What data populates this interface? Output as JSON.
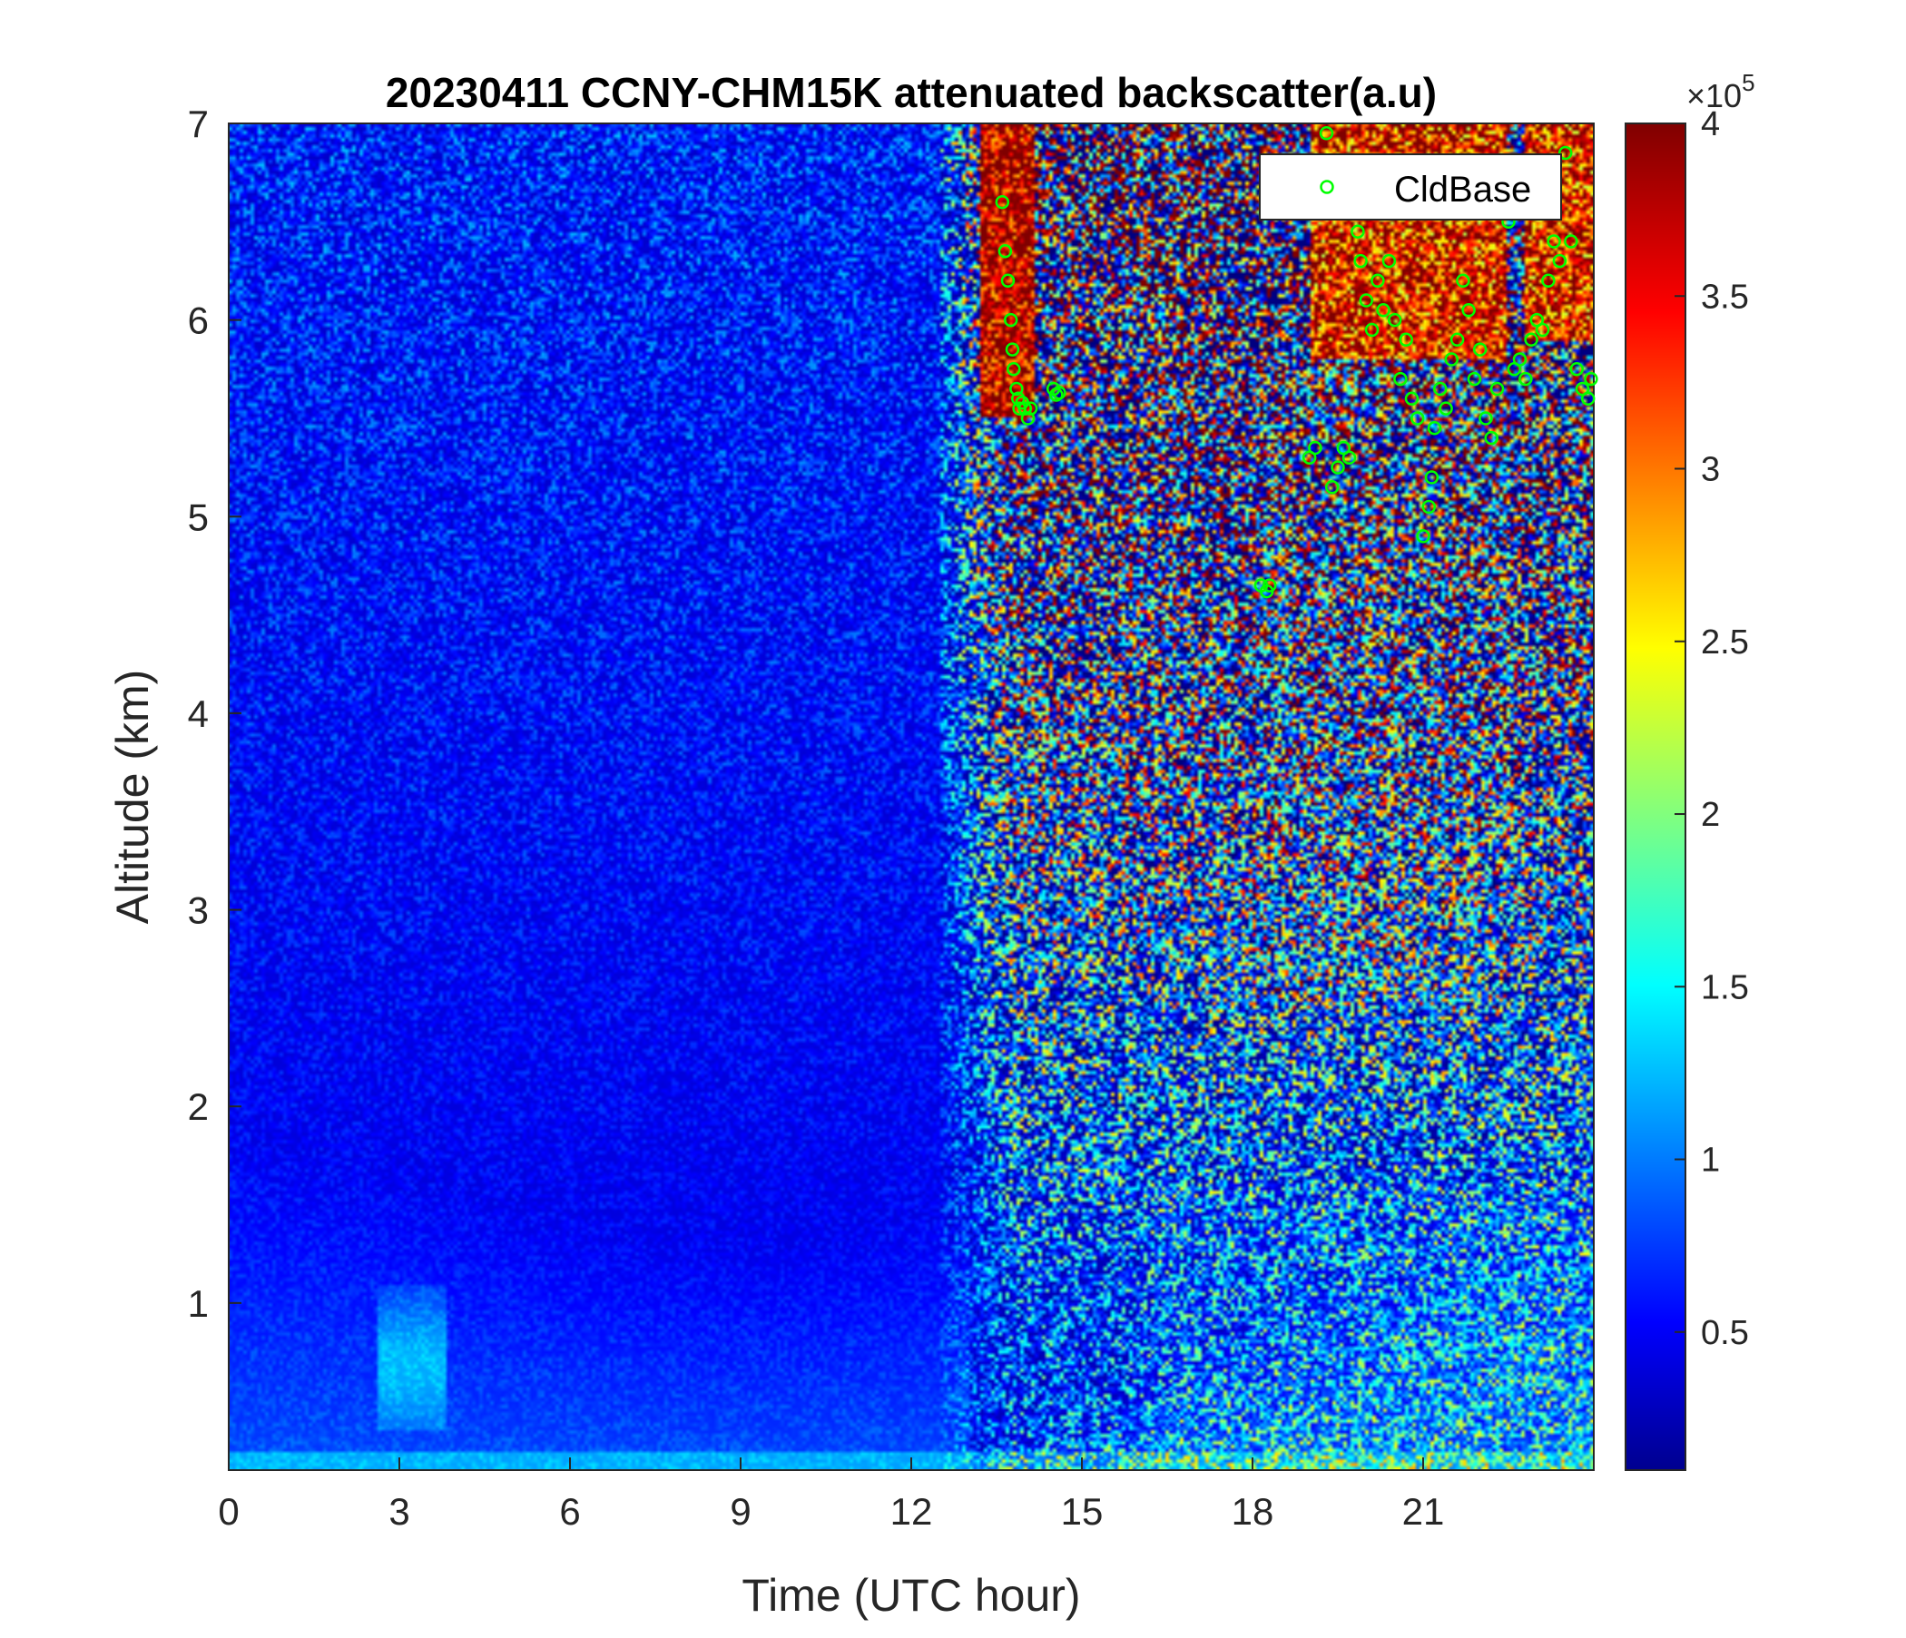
{
  "chart_data": {
    "type": "heatmap",
    "title": "20230411 CCNY-CHM15K attenuated backscatter(a.u)",
    "xlabel": "Time (UTC hour)",
    "ylabel": "Altitude (km)",
    "xlim": [
      0,
      24
    ],
    "ylim": [
      0.15,
      7
    ],
    "x_ticks": [
      0,
      3,
      6,
      9,
      12,
      15,
      18,
      21
    ],
    "x_tick_labels": [
      "0",
      "3",
      "6",
      "9",
      "12",
      "15",
      "18",
      "21"
    ],
    "y_ticks": [
      1,
      2,
      3,
      4,
      5,
      6,
      7
    ],
    "y_tick_labels": [
      "1",
      "2",
      "3",
      "4",
      "5",
      "6",
      "7"
    ],
    "colorbar": {
      "colormap": "jet",
      "range": [
        0.1,
        4
      ],
      "ticks": [
        0.5,
        1,
        1.5,
        2,
        2.5,
        3,
        3.5,
        4
      ],
      "tick_labels": [
        "0.5",
        "1",
        "1.5",
        "2",
        "2.5",
        "3",
        "3.5",
        "4"
      ],
      "multiplier_base": "×10",
      "multiplier_exp": "5"
    },
    "legend": {
      "position": "top-right",
      "entries": [
        {
          "name": "CldBase",
          "marker": "circle",
          "color": "#00ff00"
        }
      ]
    },
    "series": [
      {
        "name": "CldBase",
        "x": [
          13.6,
          13.65,
          13.7,
          13.75,
          13.78,
          13.8,
          13.85,
          13.88,
          13.9,
          13.95,
          14.0,
          14.05,
          14.1,
          14.5,
          14.55,
          14.6,
          18.15,
          18.25,
          18.3,
          19.0,
          19.1,
          19.3,
          19.4,
          19.5,
          19.6,
          19.7,
          19.85,
          19.9,
          20.0,
          20.1,
          20.2,
          20.3,
          20.4,
          20.5,
          20.6,
          20.7,
          20.8,
          20.9,
          21.0,
          21.1,
          21.15,
          21.2,
          21.3,
          21.4,
          21.5,
          21.6,
          21.7,
          21.8,
          21.9,
          22.0,
          22.1,
          22.2,
          22.3,
          22.5,
          22.6,
          22.7,
          22.8,
          22.9,
          23.0,
          23.1,
          23.2,
          23.3,
          23.4,
          23.5,
          23.6,
          23.7,
          23.8,
          23.9,
          23.95
        ],
        "y": [
          6.6,
          6.35,
          6.2,
          6.0,
          5.85,
          5.75,
          5.65,
          5.6,
          5.55,
          5.58,
          5.55,
          5.5,
          5.55,
          5.65,
          5.62,
          5.63,
          4.65,
          4.62,
          4.65,
          5.3,
          5.35,
          6.95,
          5.15,
          5.25,
          5.35,
          5.3,
          6.45,
          6.3,
          6.1,
          5.95,
          6.2,
          6.05,
          6.3,
          6.0,
          5.7,
          5.9,
          5.6,
          5.5,
          4.9,
          5.05,
          5.2,
          5.45,
          5.65,
          5.55,
          5.8,
          5.9,
          6.2,
          6.05,
          5.7,
          5.85,
          5.5,
          5.4,
          5.65,
          6.5,
          5.75,
          5.8,
          5.7,
          5.9,
          6.0,
          5.95,
          6.2,
          6.4,
          6.3,
          6.85,
          6.4,
          5.75,
          5.65,
          5.6,
          5.7
        ]
      }
    ]
  }
}
